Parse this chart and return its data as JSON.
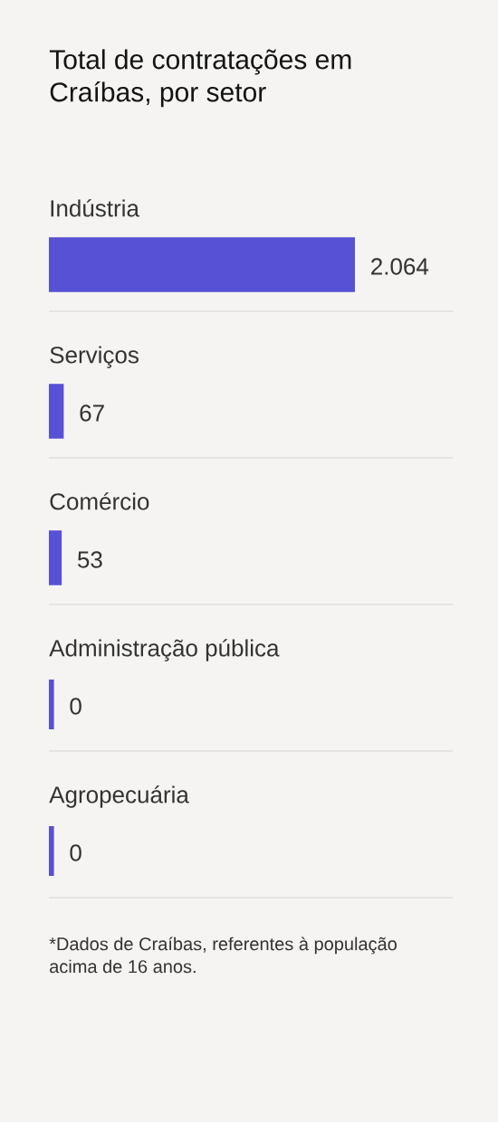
{
  "chart_data": {
    "type": "bar",
    "orientation": "horizontal",
    "title": "Total de contratações em Craíbas, por setor",
    "categories": [
      "Indústria",
      "Serviços",
      "Comércio",
      "Administração pública",
      "Agropecuária"
    ],
    "values": [
      2064,
      67,
      53,
      0,
      0
    ],
    "value_labels": [
      "2.064",
      "67",
      "53",
      "0",
      "0"
    ],
    "color": "#5751d6",
    "grid": "y",
    "annotations": [
      "*Dados de Craíbas, referentes à população acima de 16 anos."
    ]
  }
}
